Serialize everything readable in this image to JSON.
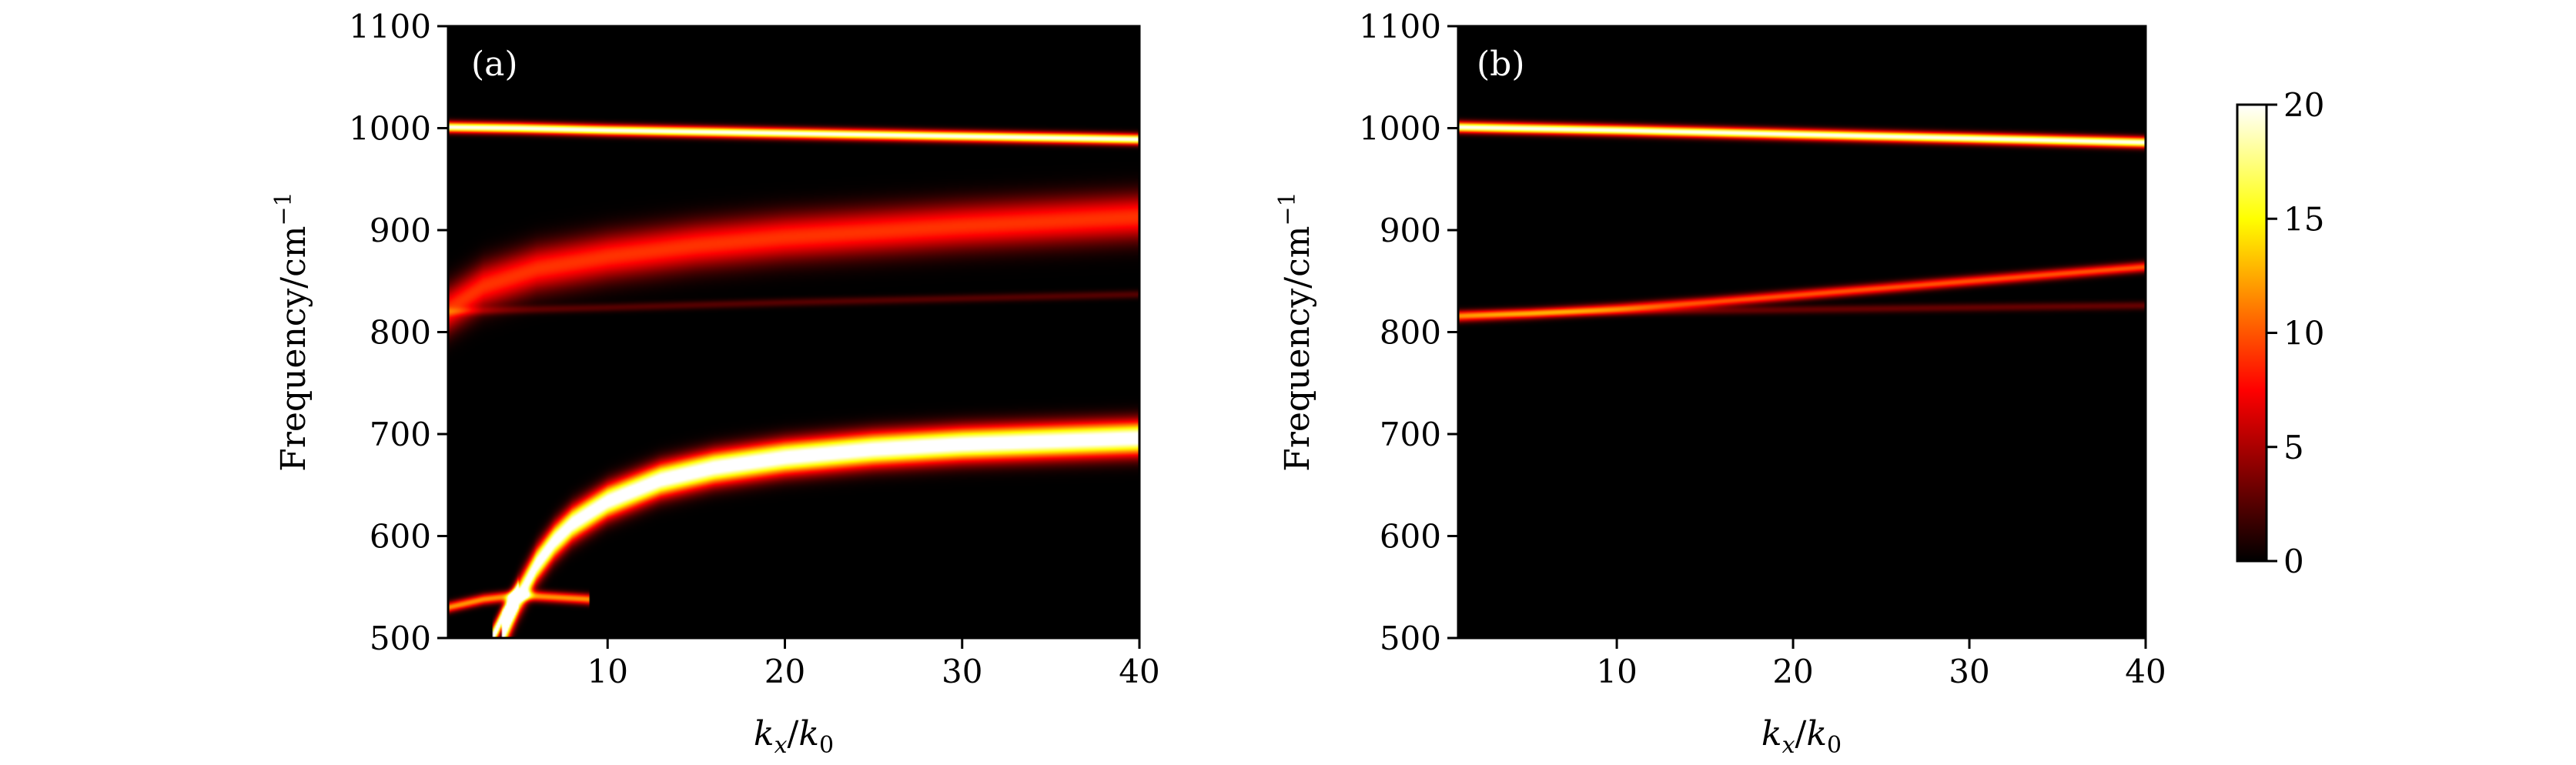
{
  "chart_data": [
    {
      "type": "heatmap",
      "panel_label": "(a)",
      "xlabel": "k_x/k_0",
      "ylabel": "Frequency/cm−1",
      "xlim": [
        1,
        40
      ],
      "ylim": [
        500,
        1100
      ],
      "xticks": [
        10,
        20,
        30,
        40
      ],
      "yticks": [
        500,
        600,
        700,
        800,
        900,
        1000,
        1100
      ],
      "bands": [
        {
          "x": [
            1,
            5,
            10,
            20,
            30,
            40
          ],
          "y": [
            1001,
            1000,
            998,
            995,
            992,
            989
          ],
          "peak": 20,
          "width_cm": 5
        },
        {
          "x": [
            1,
            3,
            6,
            10,
            15,
            20,
            30,
            40
          ],
          "y": [
            822,
            845,
            862,
            874,
            885,
            893,
            904,
            913
          ],
          "peak": 9,
          "width_cm": 22
        },
        {
          "x": [
            1,
            10,
            20,
            30,
            40
          ],
          "y": [
            820,
            824,
            829,
            833,
            837
          ],
          "peak": 2.5,
          "width_cm": 4
        },
        {
          "x": [
            4,
            5,
            6,
            7,
            8,
            10,
            13,
            16,
            20,
            25,
            30,
            40
          ],
          "y": [
            500,
            540,
            572,
            595,
            612,
            634,
            655,
            667,
            677,
            685,
            690,
            696
          ],
          "peak": 22,
          "width_cm": 16
        },
        {
          "x": [
            1,
            3,
            5,
            7,
            9
          ],
          "y": [
            530,
            538,
            542,
            540,
            538
          ],
          "peak": 12,
          "width_cm": 5
        },
        {
          "x": [
            3.5,
            4,
            4.5,
            5
          ],
          "y": [
            500,
            518,
            532,
            545
          ],
          "peak": 22,
          "width_cm": 10
        }
      ]
    },
    {
      "type": "heatmap",
      "panel_label": "(b)",
      "xlabel": "k_x/k_0",
      "ylabel": "Frequency/cm−1",
      "xlim": [
        1,
        40
      ],
      "ylim": [
        500,
        1100
      ],
      "xticks": [
        10,
        20,
        30,
        40
      ],
      "yticks": [
        500,
        600,
        700,
        800,
        900,
        1000,
        1100
      ],
      "bands": [
        {
          "x": [
            1,
            10,
            20,
            30,
            40
          ],
          "y": [
            1001,
            998,
            994,
            990,
            986
          ],
          "peak": 20,
          "width_cm": 5
        },
        {
          "x": [
            1,
            5,
            10,
            15,
            20,
            25,
            30,
            35,
            40
          ],
          "y": [
            815,
            818,
            823,
            829,
            836,
            843,
            850,
            857,
            864
          ],
          "peak": 10,
          "width_cm": 5
        },
        {
          "x": [
            1,
            10,
            20,
            30,
            40
          ],
          "y": [
            818,
            820,
            822,
            824,
            826
          ],
          "peak": 3,
          "width_cm": 4
        }
      ]
    }
  ],
  "colorbar": {
    "min": 0,
    "max": 20,
    "ticks": [
      0,
      5,
      10,
      15,
      20
    ],
    "colormap": "hot",
    "colors": [
      "#000000",
      "#ff0000",
      "#ffff00",
      "#ffffff"
    ]
  }
}
